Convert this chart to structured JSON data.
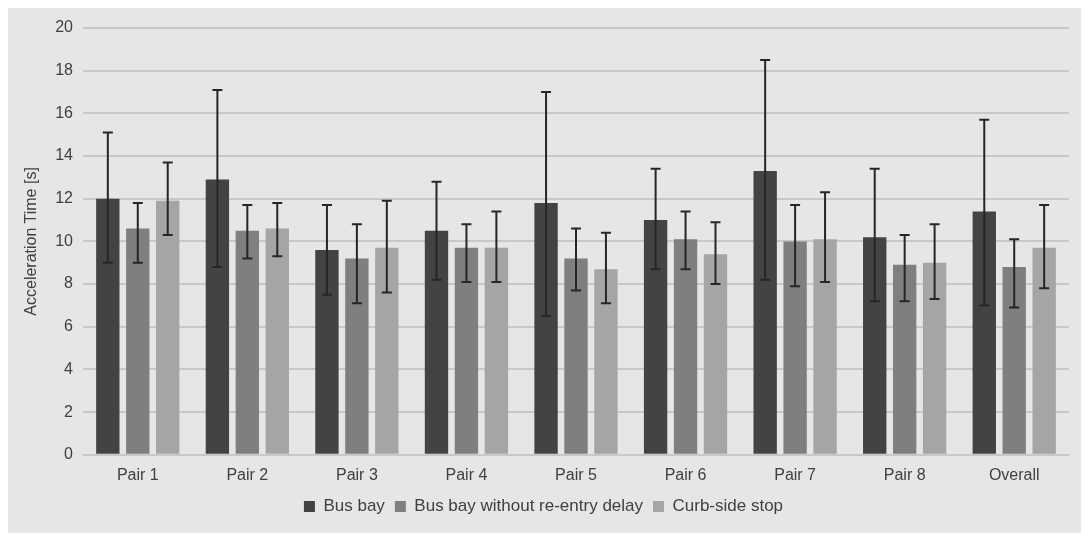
{
  "chart_data": {
    "type": "bar",
    "ylabel": "Acceleration Time [s]",
    "categories": [
      "Pair 1",
      "Pair 2",
      "Pair 3",
      "Pair 4",
      "Pair 5",
      "Pair 6",
      "Pair 7",
      "Pair 8",
      "Overall"
    ],
    "series": [
      {
        "name": "Bus bay",
        "color": "#434343",
        "values": [
          12.0,
          12.9,
          9.6,
          10.5,
          11.8,
          11.0,
          13.3,
          10.2,
          11.4
        ],
        "errors": [
          [
            9.0,
            15.1
          ],
          [
            8.8,
            17.1
          ],
          [
            7.5,
            11.7
          ],
          [
            8.2,
            12.8
          ],
          [
            6.5,
            17.0
          ],
          [
            8.7,
            13.4
          ],
          [
            8.2,
            18.5
          ],
          [
            7.2,
            13.4
          ],
          [
            7.0,
            15.7
          ]
        ]
      },
      {
        "name": "Bus bay without re-entry delay",
        "color": "#7f7f7f",
        "values": [
          10.6,
          10.5,
          9.2,
          9.7,
          9.2,
          10.1,
          10.0,
          8.9,
          8.8
        ],
        "errors": [
          [
            9.0,
            11.8
          ],
          [
            9.2,
            11.7
          ],
          [
            7.1,
            10.8
          ],
          [
            8.1,
            10.8
          ],
          [
            7.7,
            10.6
          ],
          [
            8.7,
            11.4
          ],
          [
            7.9,
            11.7
          ],
          [
            7.2,
            10.3
          ],
          [
            6.9,
            10.1
          ]
        ]
      },
      {
        "name": "Curb-side stop",
        "color": "#a5a5a5",
        "values": [
          11.9,
          10.6,
          9.7,
          9.7,
          8.7,
          9.4,
          10.1,
          9.0,
          9.7
        ],
        "errors": [
          [
            10.3,
            13.7
          ],
          [
            9.3,
            11.8
          ],
          [
            7.6,
            11.9
          ],
          [
            8.1,
            11.4
          ],
          [
            7.1,
            10.4
          ],
          [
            8.0,
            10.9
          ],
          [
            8.1,
            12.3
          ],
          [
            7.3,
            10.8
          ],
          [
            7.8,
            11.7
          ]
        ]
      }
    ],
    "ylim": [
      0,
      20
    ],
    "yticks": [
      0,
      2,
      4,
      6,
      8,
      10,
      12,
      14,
      16,
      18,
      20
    ],
    "grid": "y",
    "legend": "bottom"
  }
}
